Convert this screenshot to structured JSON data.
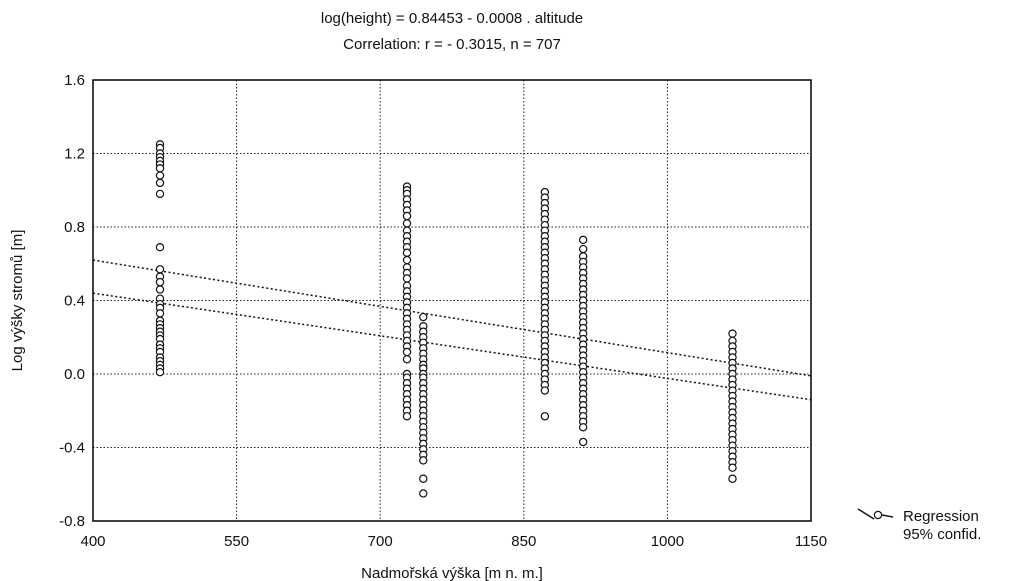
{
  "chart_data": {
    "type": "scatter",
    "title": "log(height) = 0.84453 - 0.0008 . altitude",
    "subtitle": "Correlation: r = - 0.3015, n = 707",
    "xlabel": "Nadmořská výška [m n. m.]",
    "ylabel": "Log výšky stromů [m]",
    "xlim": [
      400,
      1150
    ],
    "ylim": [
      -0.8,
      1.6
    ],
    "xticks": [
      400,
      550,
      700,
      850,
      1000,
      1150
    ],
    "xtick_labels": [
      "400",
      "550",
      "700",
      "850",
      "1000",
      "1150"
    ],
    "yticks": [
      -0.8,
      -0.4,
      0.0,
      0.4,
      0.8,
      1.2,
      1.6
    ],
    "ytick_labels": [
      "-0.8",
      "-0.4",
      "0.0",
      "0.4",
      "0.8",
      "1.2",
      "1.6"
    ],
    "grid": true,
    "legend": {
      "placement": "outside-right-bottom",
      "entries": [
        "Regression",
        "95% confid."
      ]
    },
    "regression": {
      "intercept": 0.84453,
      "slope": -0.0008
    },
    "confidence_band": {
      "upper": [
        [
          400,
          0.62
        ],
        [
          1150,
          -0.01
        ]
      ],
      "lower": [
        [
          400,
          0.44
        ],
        [
          1150,
          -0.14
        ]
      ]
    },
    "points": [
      {
        "x": 470,
        "y": [
          1.25,
          1.23,
          1.2,
          1.18,
          1.16,
          1.14,
          1.12,
          1.08,
          1.04,
          0.98,
          0.69,
          0.57,
          0.53,
          0.5,
          0.46,
          0.41,
          0.38,
          0.36,
          0.33,
          0.29,
          0.27,
          0.25,
          0.23,
          0.21,
          0.19,
          0.16,
          0.14,
          0.12,
          0.09,
          0.07,
          0.05,
          0.03,
          0.01
        ]
      },
      {
        "x": 728,
        "y": [
          1.02,
          1.0,
          0.98,
          0.95,
          0.92,
          0.89,
          0.86,
          0.82,
          0.78,
          0.75,
          0.72,
          0.69,
          0.66,
          0.62,
          0.58,
          0.55,
          0.52,
          0.48,
          0.45,
          0.42,
          0.39,
          0.36,
          0.33,
          0.3,
          0.27,
          0.24,
          0.21,
          0.18,
          0.15,
          0.12,
          0.08,
          0.0,
          -0.02,
          -0.05,
          -0.08,
          -0.11,
          -0.14,
          -0.17,
          -0.2,
          -0.23
        ]
      },
      {
        "x": 745,
        "y": [
          0.31,
          0.26,
          0.23,
          0.2,
          0.17,
          0.14,
          0.11,
          0.08,
          0.05,
          0.03,
          0.0,
          -0.02,
          -0.05,
          -0.08,
          -0.11,
          -0.14,
          -0.17,
          -0.2,
          -0.23,
          -0.26,
          -0.29,
          -0.32,
          -0.35,
          -0.38,
          -0.41,
          -0.44,
          -0.47,
          -0.57,
          -0.65
        ]
      },
      {
        "x": 872,
        "y": [
          0.99,
          0.96,
          0.93,
          0.9,
          0.87,
          0.84,
          0.81,
          0.78,
          0.75,
          0.72,
          0.69,
          0.66,
          0.63,
          0.6,
          0.57,
          0.54,
          0.51,
          0.48,
          0.45,
          0.42,
          0.39,
          0.36,
          0.33,
          0.3,
          0.27,
          0.24,
          0.21,
          0.18,
          0.15,
          0.12,
          0.09,
          0.06,
          0.03,
          0.0,
          -0.03,
          -0.06,
          -0.09,
          -0.23
        ]
      },
      {
        "x": 912,
        "y": [
          0.73,
          0.68,
          0.64,
          0.61,
          0.58,
          0.55,
          0.52,
          0.49,
          0.46,
          0.43,
          0.4,
          0.37,
          0.34,
          0.31,
          0.28,
          0.25,
          0.22,
          0.19,
          0.16,
          0.13,
          0.1,
          0.07,
          0.04,
          0.01,
          -0.02,
          -0.05,
          -0.08,
          -0.11,
          -0.14,
          -0.17,
          -0.2,
          -0.23,
          -0.26,
          -0.29,
          -0.37
        ]
      },
      {
        "x": 1068,
        "y": [
          0.22,
          0.18,
          0.15,
          0.12,
          0.09,
          0.06,
          0.03,
          0.0,
          -0.03,
          -0.06,
          -0.09,
          -0.12,
          -0.15,
          -0.18,
          -0.21,
          -0.24,
          -0.27,
          -0.3,
          -0.33,
          -0.36,
          -0.39,
          -0.42,
          -0.45,
          -0.48,
          -0.51,
          -0.57
        ]
      }
    ]
  }
}
